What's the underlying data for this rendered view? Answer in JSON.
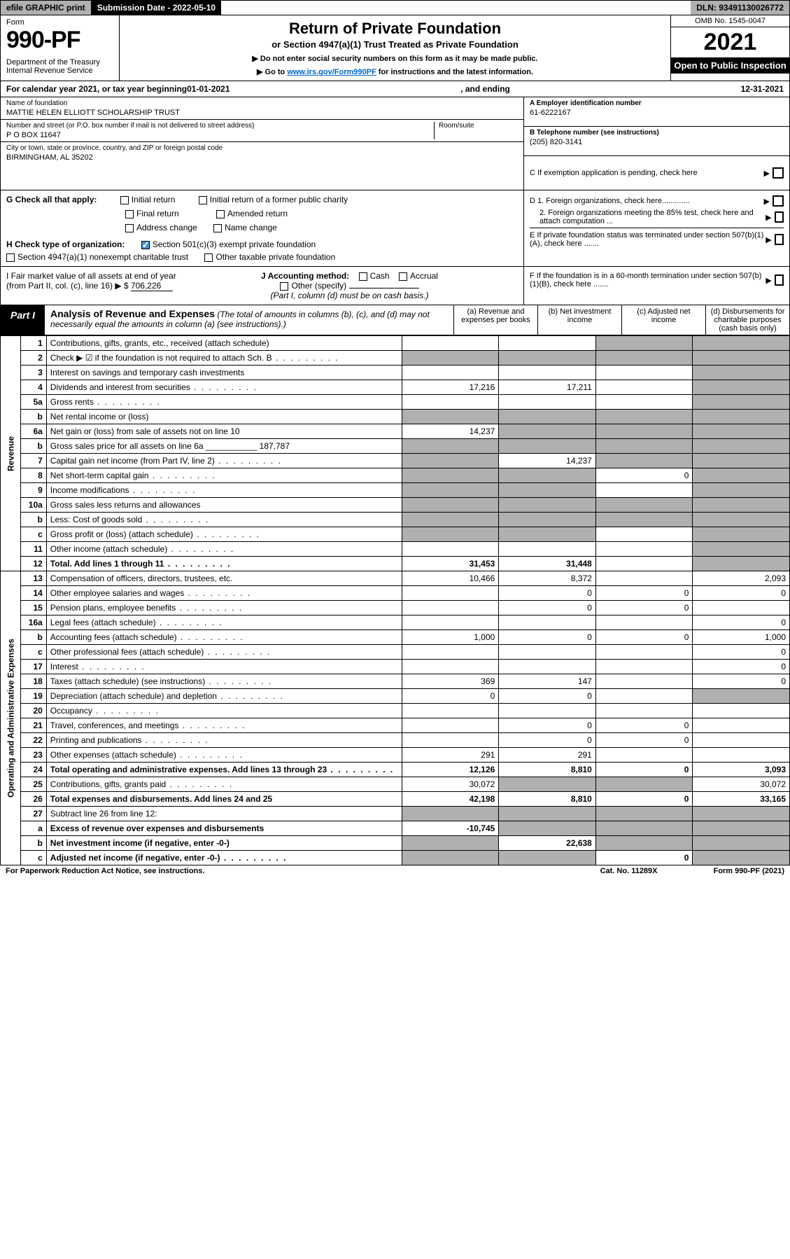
{
  "topbar": {
    "efile": "efile GRAPHIC print",
    "subdate_lbl": "Submission Date - 2022-05-10",
    "dln": "DLN: 93491130026772"
  },
  "header": {
    "form_word": "Form",
    "form_num": "990-PF",
    "dept": "Department of the Treasury\nInternal Revenue Service",
    "title": "Return of Private Foundation",
    "subtitle": "or Section 4947(a)(1) Trust Treated as Private Foundation",
    "note1": "▶ Do not enter social security numbers on this form as it may be made public.",
    "note2_pre": "▶ Go to ",
    "note2_link": "www.irs.gov/Form990PF",
    "note2_post": " for instructions and the latest information.",
    "omb": "OMB No. 1545-0047",
    "year": "2021",
    "open": "Open to Public Inspection"
  },
  "calrow": {
    "pre": "For calendar year 2021, or tax year beginning ",
    "begin": "01-01-2021",
    "mid": ", and ending ",
    "end": "12-31-2021"
  },
  "id": {
    "name_lbl": "Name of foundation",
    "name": "MATTIE HELEN ELLIOTT SCHOLARSHIP TRUST",
    "addr_lbl": "Number and street (or P.O. box number if mail is not delivered to street address)",
    "addr": "P O BOX 11647",
    "room_lbl": "Room/suite",
    "city_lbl": "City or town, state or province, country, and ZIP or foreign postal code",
    "city": "BIRMINGHAM, AL  35202",
    "ein_lbl": "A Employer identification number",
    "ein": "61-6222167",
    "tel_lbl": "B Telephone number (see instructions)",
    "tel": "(205) 820-3141",
    "c": "C If exemption application is pending, check here",
    "d1": "D 1. Foreign organizations, check here.............",
    "d2": "2. Foreign organizations meeting the 85% test, check here and attach computation ...",
    "e": "E  If private foundation status was terminated under section 507(b)(1)(A), check here .......",
    "f": "F  If the foundation is in a 60-month termination under section 507(b)(1)(B), check here .......",
    "g_lbl": "G Check all that apply:",
    "g_opts": [
      "Initial return",
      "Initial return of a former public charity",
      "Final return",
      "Amended return",
      "Address change",
      "Name change"
    ],
    "h_lbl": "H Check type of organization:",
    "h1": "Section 501(c)(3) exempt private foundation",
    "h2": "Section 4947(a)(1) nonexempt charitable trust",
    "h3": "Other taxable private foundation",
    "i_lbl": "I Fair market value of all assets at end of year (from Part II, col. (c), line 16) ▶ $",
    "i_val": "706,226",
    "j_lbl": "J Accounting method:",
    "j_opts": [
      "Cash",
      "Accrual"
    ],
    "j_other": "Other (specify)",
    "j_note": "(Part I, column (d) must be on cash basis.)"
  },
  "part1": {
    "tab": "Part I",
    "title": "Analysis of Revenue and Expenses",
    "title_note": " (The total of amounts in columns (b), (c), and (d) may not necessarily equal the amounts in column (a) (see instructions).)",
    "cols": {
      "a": "(a)   Revenue and expenses per books",
      "b": "(b)   Net investment income",
      "c": "(c)   Adjusted net income",
      "d": "(d)   Disbursements for charitable purposes (cash basis only)"
    }
  },
  "sides": {
    "rev": "Revenue",
    "exp": "Operating and Administrative Expenses"
  },
  "rows": [
    {
      "n": "1",
      "d": "Contributions, gifts, grants, etc., received (attach schedule)",
      "a": "",
      "b": "",
      "c": "s",
      "dd": "s"
    },
    {
      "n": "2",
      "d": "Check ▶ ☑ if the foundation is not required to attach Sch. B",
      "a": "s",
      "b": "s",
      "c": "s",
      "dd": "s",
      "dots": 1
    },
    {
      "n": "3",
      "d": "Interest on savings and temporary cash investments",
      "a": "",
      "b": "",
      "c": "",
      "dd": "s"
    },
    {
      "n": "4",
      "d": "Dividends and interest from securities",
      "a": "17,216",
      "b": "17,211",
      "c": "",
      "dd": "s",
      "dots": 1
    },
    {
      "n": "5a",
      "d": "Gross rents",
      "a": "",
      "b": "",
      "c": "",
      "dd": "s",
      "dots": 1
    },
    {
      "n": "b",
      "d": "Net rental income or (loss)",
      "a": "s",
      "b": "s",
      "c": "s",
      "dd": "s",
      "uline": 1
    },
    {
      "n": "6a",
      "d": "Net gain or (loss) from sale of assets not on line 10",
      "a": "14,237",
      "b": "s",
      "c": "s",
      "dd": "s"
    },
    {
      "n": "b",
      "d": "Gross sales price for all assets on line 6a",
      "a": "s",
      "b": "s",
      "c": "s",
      "dd": "s",
      "inline": "187,787"
    },
    {
      "n": "7",
      "d": "Capital gain net income (from Part IV, line 2)",
      "a": "s",
      "b": "14,237",
      "c": "s",
      "dd": "s",
      "dots": 1
    },
    {
      "n": "8",
      "d": "Net short-term capital gain",
      "a": "s",
      "b": "s",
      "c": "0",
      "dd": "s",
      "dots": 1
    },
    {
      "n": "9",
      "d": "Income modifications",
      "a": "s",
      "b": "s",
      "c": "",
      "dd": "s",
      "dots": 1
    },
    {
      "n": "10a",
      "d": "Gross sales less returns and allowances",
      "a": "s",
      "b": "s",
      "c": "s",
      "dd": "s",
      "uline": 1
    },
    {
      "n": "b",
      "d": "Less: Cost of goods sold",
      "a": "s",
      "b": "s",
      "c": "s",
      "dd": "s",
      "dots": 1,
      "uline": 1
    },
    {
      "n": "c",
      "d": "Gross profit or (loss) (attach schedule)",
      "a": "s",
      "b": "s",
      "c": "",
      "dd": "s",
      "dots": 1
    },
    {
      "n": "11",
      "d": "Other income (attach schedule)",
      "a": "",
      "b": "",
      "c": "",
      "dd": "s",
      "dots": 1
    },
    {
      "n": "12",
      "d": "Total. Add lines 1 through 11",
      "a": "31,453",
      "b": "31,448",
      "c": "",
      "dd": "s",
      "dots": 1,
      "tot": 1
    },
    {
      "n": "13",
      "d": "Compensation of officers, directors, trustees, etc.",
      "a": "10,466",
      "b": "8,372",
      "c": "",
      "dd": "2,093"
    },
    {
      "n": "14",
      "d": "Other employee salaries and wages",
      "a": "",
      "b": "0",
      "c": "0",
      "dd": "0",
      "dots": 1
    },
    {
      "n": "15",
      "d": "Pension plans, employee benefits",
      "a": "",
      "b": "0",
      "c": "0",
      "dd": "",
      "dots": 1
    },
    {
      "n": "16a",
      "d": "Legal fees (attach schedule)",
      "a": "",
      "b": "",
      "c": "",
      "dd": "0",
      "dots": 1
    },
    {
      "n": "b",
      "d": "Accounting fees (attach schedule)",
      "a": "1,000",
      "b": "0",
      "c": "0",
      "dd": "1,000",
      "dots": 1
    },
    {
      "n": "c",
      "d": "Other professional fees (attach schedule)",
      "a": "",
      "b": "",
      "c": "",
      "dd": "0",
      "dots": 1
    },
    {
      "n": "17",
      "d": "Interest",
      "a": "",
      "b": "",
      "c": "",
      "dd": "0",
      "dots": 1
    },
    {
      "n": "18",
      "d": "Taxes (attach schedule) (see instructions)",
      "a": "369",
      "b": "147",
      "c": "",
      "dd": "0",
      "dots": 1
    },
    {
      "n": "19",
      "d": "Depreciation (attach schedule) and depletion",
      "a": "0",
      "b": "0",
      "c": "",
      "dd": "s",
      "dots": 1
    },
    {
      "n": "20",
      "d": "Occupancy",
      "a": "",
      "b": "",
      "c": "",
      "dd": "",
      "dots": 1
    },
    {
      "n": "21",
      "d": "Travel, conferences, and meetings",
      "a": "",
      "b": "0",
      "c": "0",
      "dd": "",
      "dots": 1
    },
    {
      "n": "22",
      "d": "Printing and publications",
      "a": "",
      "b": "0",
      "c": "0",
      "dd": "",
      "dots": 1
    },
    {
      "n": "23",
      "d": "Other expenses (attach schedule)",
      "a": "291",
      "b": "291",
      "c": "",
      "dd": "",
      "dots": 1
    },
    {
      "n": "24",
      "d": "Total operating and administrative expenses. Add lines 13 through 23",
      "a": "12,126",
      "b": "8,810",
      "c": "0",
      "dd": "3,093",
      "dots": 1,
      "tot": 1
    },
    {
      "n": "25",
      "d": "Contributions, gifts, grants paid",
      "a": "30,072",
      "b": "s",
      "c": "s",
      "dd": "30,072",
      "dots": 1
    },
    {
      "n": "26",
      "d": "Total expenses and disbursements. Add lines 24 and 25",
      "a": "42,198",
      "b": "8,810",
      "c": "0",
      "dd": "33,165",
      "tot": 1
    },
    {
      "n": "27",
      "d": "Subtract line 26 from line 12:",
      "a": "s",
      "b": "s",
      "c": "s",
      "dd": "s"
    },
    {
      "n": "a",
      "d": "Excess of revenue over expenses and disbursements",
      "a": "-10,745",
      "b": "s",
      "c": "s",
      "dd": "s",
      "tot": 1
    },
    {
      "n": "b",
      "d": "Net investment income (if negative, enter -0-)",
      "a": "s",
      "b": "22,638",
      "c": "s",
      "dd": "s",
      "tot": 1
    },
    {
      "n": "c",
      "d": "Adjusted net income (if negative, enter -0-)",
      "a": "s",
      "b": "s",
      "c": "0",
      "dd": "s",
      "dots": 1,
      "tot": 1
    }
  ],
  "footer": {
    "left": "For Paperwork Reduction Act Notice, see instructions.",
    "mid": "Cat. No. 11289X",
    "right": "Form 990-PF (2021)"
  }
}
